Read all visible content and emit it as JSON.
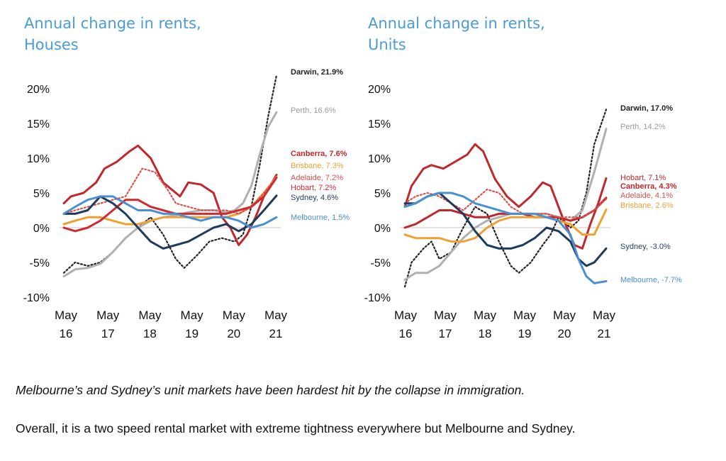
{
  "captions": {
    "line1": "Melbourne’s and Sydney’s unit markets have been hardest hit by the collapse in immigration.",
    "line2": "Overall, it is a two speed rental market with extreme tightness everywhere but Melbourne and Sydney."
  },
  "colors": {
    "title": "#4a9bd6",
    "Darwin": "#222222",
    "Perth": "#b0b0b0",
    "Canberra": "#c0282d",
    "Brisbane": "#f0a030",
    "Adelaide": "#d9534f",
    "Hobart": "#c0282d",
    "Sydney": "#1f3b5c",
    "Melbourne": "#4a90d0"
  },
  "chart_data": [
    {
      "type": "line",
      "title_lines": [
        "Annual change in rents,",
        "Houses"
      ],
      "y_ticks": [
        "20%",
        "15%",
        "10%",
        "5%",
        "0%",
        "-5%",
        "-10%"
      ],
      "x_ticks": [
        [
          "May",
          "16"
        ],
        [
          "May",
          "17"
        ],
        [
          "May",
          "18"
        ],
        [
          "May",
          "19"
        ],
        [
          "May",
          "20"
        ],
        [
          "May",
          "21"
        ]
      ],
      "ylim": [
        -10,
        22
      ],
      "xlim": [
        2016.33,
        2021.4
      ],
      "series": [
        {
          "name": "Darwin",
          "end_label": "Darwin, 21.9%",
          "style": "dotted",
          "color": "#222222",
          "bold_label": true,
          "x": [
            2016.33,
            2016.6,
            2016.9,
            2017.2,
            2017.5,
            2017.8,
            2018.1,
            2018.4,
            2018.7,
            2019.0,
            2019.2,
            2019.5,
            2019.8,
            2020.1,
            2020.4,
            2020.6,
            2020.8,
            2021.0,
            2021.2,
            2021.4
          ],
          "y": [
            -6.5,
            -5.0,
            -5.5,
            -5.0,
            -3.5,
            -1.5,
            0.0,
            1.5,
            -1.0,
            -4.5,
            -5.8,
            -4.0,
            -2.0,
            -1.5,
            -2.0,
            -1.0,
            3.0,
            9.0,
            16.0,
            21.9
          ]
        },
        {
          "name": "Perth",
          "end_label": "Perth, 16.6%",
          "style": "solid",
          "color": "#b0b0b0",
          "bold_label": false,
          "x": [
            2016.33,
            2016.6,
            2016.9,
            2017.2,
            2017.5,
            2017.8,
            2018.1,
            2018.4,
            2018.7,
            2019.0,
            2019.3,
            2019.6,
            2019.9,
            2020.2,
            2020.4,
            2020.6,
            2020.8,
            2021.0,
            2021.2,
            2021.4
          ],
          "y": [
            -7.0,
            -6.0,
            -5.8,
            -5.2,
            -3.5,
            -1.5,
            0.0,
            1.0,
            1.5,
            1.8,
            2.2,
            2.5,
            2.5,
            2.2,
            2.5,
            3.5,
            6.0,
            10.5,
            14.5,
            16.6
          ]
        },
        {
          "name": "Canberra",
          "end_label": "Canberra, 7.6%",
          "style": "solid",
          "color": "#c0282d",
          "bold_label": true,
          "x": [
            2016.33,
            2016.5,
            2016.8,
            2017.1,
            2017.3,
            2017.6,
            2017.9,
            2018.1,
            2018.4,
            2018.7,
            2018.9,
            2019.1,
            2019.3,
            2019.6,
            2019.9,
            2020.1,
            2020.3,
            2020.5,
            2020.7,
            2020.9,
            2021.1,
            2021.4
          ],
          "y": [
            3.5,
            4.5,
            5.0,
            6.5,
            8.5,
            9.5,
            11.0,
            11.8,
            10.0,
            6.5,
            5.5,
            4.5,
            6.5,
            6.2,
            5.0,
            1.5,
            0.0,
            -2.5,
            -1.0,
            1.5,
            4.5,
            7.6
          ]
        },
        {
          "name": "Brisbane",
          "end_label": "Brisbane, 7.3%",
          "style": "solid",
          "color": "#f0a030",
          "bold_label": false,
          "x": [
            2016.33,
            2016.6,
            2016.9,
            2017.2,
            2017.5,
            2017.8,
            2018.1,
            2018.4,
            2018.7,
            2019.0,
            2019.3,
            2019.6,
            2019.9,
            2020.2,
            2020.5,
            2020.8,
            2021.1,
            2021.4
          ],
          "y": [
            0.5,
            1.0,
            1.5,
            1.5,
            1.0,
            0.5,
            0.5,
            1.0,
            1.5,
            1.5,
            1.5,
            1.5,
            1.5,
            1.5,
            2.0,
            3.0,
            5.0,
            7.3
          ]
        },
        {
          "name": "Adelaide",
          "end_label": "Adelaide, 7.2%",
          "style": "dotted",
          "color": "#d9534f",
          "bold_label": false,
          "x": [
            2016.33,
            2016.6,
            2016.9,
            2017.2,
            2017.5,
            2017.8,
            2018.0,
            2018.2,
            2018.5,
            2018.8,
            2019.0,
            2019.3,
            2019.6,
            2019.9,
            2020.2,
            2020.5,
            2020.8,
            2021.1,
            2021.4
          ],
          "y": [
            2.0,
            2.5,
            3.0,
            3.5,
            4.0,
            4.5,
            6.5,
            8.5,
            8.0,
            5.5,
            3.5,
            3.0,
            2.5,
            2.5,
            2.5,
            2.0,
            3.0,
            5.0,
            7.2
          ]
        },
        {
          "name": "Hobart",
          "end_label": "Hobart, 7.2%",
          "style": "solid",
          "color": "#d02a30",
          "bold_label": false,
          "x": [
            2016.33,
            2016.6,
            2016.9,
            2017.2,
            2017.5,
            2017.8,
            2018.1,
            2018.4,
            2018.7,
            2019.0,
            2019.3,
            2019.6,
            2019.9,
            2020.2,
            2020.5,
            2020.8,
            2021.1,
            2021.4
          ],
          "y": [
            0.0,
            -0.5,
            0.0,
            1.0,
            2.5,
            4.0,
            4.0,
            3.0,
            2.5,
            2.0,
            2.0,
            2.0,
            2.0,
            2.0,
            2.5,
            3.0,
            4.5,
            7.2
          ]
        },
        {
          "name": "Sydney",
          "end_label": "Sydney, 4.6%",
          "style": "solid",
          "color": "#1f3b5c",
          "bold_label": false,
          "x": [
            2016.33,
            2016.6,
            2016.9,
            2017.2,
            2017.5,
            2017.8,
            2018.1,
            2018.4,
            2018.7,
            2019.0,
            2019.3,
            2019.6,
            2019.9,
            2020.2,
            2020.5,
            2020.8,
            2021.1,
            2021.4
          ],
          "y": [
            2.0,
            2.0,
            2.5,
            4.5,
            3.5,
            2.0,
            0.0,
            -2.0,
            -3.0,
            -2.5,
            -2.0,
            -1.0,
            0.0,
            0.5,
            -0.5,
            0.5,
            2.5,
            4.6
          ]
        },
        {
          "name": "Melbourne",
          "end_label": "Melbourne, 1.5%",
          "style": "solid",
          "color": "#4a90d0",
          "bold_label": false,
          "x": [
            2016.33,
            2016.6,
            2016.9,
            2017.2,
            2017.5,
            2017.8,
            2018.1,
            2018.4,
            2018.7,
            2019.0,
            2019.3,
            2019.6,
            2019.9,
            2020.2,
            2020.5,
            2020.8,
            2021.1,
            2021.4
          ],
          "y": [
            2.0,
            3.0,
            4.0,
            4.5,
            4.5,
            3.5,
            2.5,
            2.5,
            2.0,
            2.0,
            1.5,
            1.0,
            1.5,
            1.5,
            1.0,
            0.0,
            0.5,
            1.5
          ]
        }
      ]
    },
    {
      "type": "line",
      "title_lines": [
        "Annual change in rents,",
        "Units"
      ],
      "y_ticks": [
        "20%",
        "15%",
        "10%",
        "5%",
        "0%",
        "-5%",
        "-10%"
      ],
      "x_ticks": [
        [
          "May",
          "16"
        ],
        [
          "May",
          "17"
        ],
        [
          "May",
          "18"
        ],
        [
          "May",
          "19"
        ],
        [
          "May",
          "20"
        ],
        [
          "May",
          "21"
        ]
      ],
      "ylim": [
        -10,
        22
      ],
      "xlim": [
        2016.33,
        2021.4
      ],
      "series": [
        {
          "name": "Darwin",
          "end_label": "Darwin, 17.0%",
          "style": "dotted",
          "color": "#222222",
          "bold_label": true,
          "x": [
            2016.33,
            2016.5,
            2016.8,
            2017.0,
            2017.2,
            2017.5,
            2017.8,
            2018.1,
            2018.4,
            2018.7,
            2019.0,
            2019.2,
            2019.5,
            2019.8,
            2020.0,
            2020.2,
            2020.5,
            2020.7,
            2020.9,
            2021.1,
            2021.4
          ],
          "y": [
            -8.5,
            -5.0,
            -3.0,
            -2.0,
            -4.5,
            -3.5,
            0.0,
            3.0,
            2.0,
            -2.0,
            -5.5,
            -6.5,
            -5.0,
            -2.5,
            -1.0,
            1.5,
            0.0,
            1.0,
            5.0,
            12.0,
            17.0
          ]
        },
        {
          "name": "Perth",
          "end_label": "Perth, 14.2%",
          "style": "solid",
          "color": "#b0b0b0",
          "bold_label": false,
          "x": [
            2016.33,
            2016.6,
            2016.9,
            2017.2,
            2017.5,
            2017.8,
            2018.1,
            2018.4,
            2018.7,
            2019.0,
            2019.3,
            2019.6,
            2019.9,
            2020.2,
            2020.5,
            2020.8,
            2021.1,
            2021.4
          ],
          "y": [
            -7.5,
            -6.5,
            -6.5,
            -5.5,
            -3.5,
            -1.5,
            0.0,
            1.0,
            1.5,
            2.0,
            2.0,
            2.0,
            2.0,
            1.5,
            1.0,
            2.5,
            8.0,
            14.2
          ]
        },
        {
          "name": "Hobart",
          "end_label": "Hobart, 7.1%",
          "style": "solid",
          "color": "#c0282d",
          "bold_label": false,
          "x": [
            2016.33,
            2016.5,
            2016.8,
            2017.0,
            2017.3,
            2017.6,
            2017.9,
            2018.1,
            2018.3,
            2018.6,
            2018.9,
            2019.2,
            2019.5,
            2019.8,
            2020.0,
            2020.3,
            2020.6,
            2020.8,
            2021.0,
            2021.2,
            2021.4
          ],
          "y": [
            3.0,
            6.0,
            8.5,
            9.0,
            8.5,
            9.5,
            10.5,
            12.0,
            11.0,
            7.0,
            4.5,
            3.0,
            4.5,
            6.5,
            6.0,
            1.5,
            -2.5,
            -3.0,
            0.5,
            3.5,
            7.1
          ]
        },
        {
          "name": "Canberra",
          "end_label": "Canberra, 4.3%",
          "style": "solid",
          "color": "#c0282d",
          "bold_label": true,
          "x": [
            2016.33,
            2016.6,
            2016.9,
            2017.2,
            2017.5,
            2017.8,
            2018.1,
            2018.4,
            2018.7,
            2019.0,
            2019.3,
            2019.6,
            2019.9,
            2020.2,
            2020.5,
            2020.8,
            2021.1,
            2021.4
          ],
          "y": [
            0.0,
            0.5,
            1.5,
            2.5,
            2.5,
            2.0,
            1.5,
            1.5,
            2.0,
            2.0,
            2.0,
            1.5,
            1.5,
            1.5,
            1.0,
            1.5,
            2.5,
            4.3
          ]
        },
        {
          "name": "Adelaide",
          "end_label": "Adelaide, 4.1%",
          "style": "dotted",
          "color": "#d9534f",
          "bold_label": false,
          "x": [
            2016.33,
            2016.6,
            2016.9,
            2017.2,
            2017.5,
            2017.8,
            2018.1,
            2018.4,
            2018.7,
            2019.0,
            2019.3,
            2019.6,
            2019.9,
            2020.2,
            2020.5,
            2020.8,
            2021.1,
            2021.4
          ],
          "y": [
            3.5,
            4.5,
            5.0,
            4.5,
            3.5,
            2.5,
            4.0,
            5.5,
            5.0,
            3.0,
            2.0,
            2.0,
            2.0,
            1.5,
            1.5,
            1.5,
            2.5,
            4.1
          ]
        },
        {
          "name": "Brisbane",
          "end_label": "Brisbane, 2.6%",
          "style": "solid",
          "color": "#f0a030",
          "bold_label": false,
          "x": [
            2016.33,
            2016.6,
            2016.9,
            2017.2,
            2017.5,
            2017.8,
            2018.1,
            2018.4,
            2018.7,
            2019.0,
            2019.3,
            2019.6,
            2019.9,
            2020.2,
            2020.5,
            2020.8,
            2021.1,
            2021.4
          ],
          "y": [
            -1.0,
            -1.5,
            -1.5,
            -1.5,
            -2.0,
            -2.0,
            -1.5,
            0.0,
            1.0,
            1.5,
            1.5,
            1.5,
            1.5,
            1.0,
            0.5,
            -1.0,
            -1.0,
            2.6
          ]
        },
        {
          "name": "Sydney",
          "end_label": "Sydney, -3.0%",
          "style": "solid",
          "color": "#1f3b5c",
          "bold_label": false,
          "x": [
            2016.33,
            2016.6,
            2016.9,
            2017.2,
            2017.5,
            2017.8,
            2018.1,
            2018.4,
            2018.7,
            2019.0,
            2019.3,
            2019.6,
            2019.9,
            2020.2,
            2020.5,
            2020.7,
            2020.9,
            2021.1,
            2021.4
          ],
          "y": [
            3.5,
            3.5,
            4.5,
            5.0,
            3.5,
            2.0,
            -0.5,
            -2.5,
            -3.0,
            -3.0,
            -2.5,
            -1.5,
            0.0,
            -0.5,
            -2.0,
            -4.5,
            -5.5,
            -5.0,
            -3.0
          ]
        },
        {
          "name": "Melbourne",
          "end_label": "Melbourne, -7.7%",
          "style": "solid",
          "color": "#4a90d0",
          "bold_label": false,
          "x": [
            2016.33,
            2016.6,
            2016.9,
            2017.2,
            2017.5,
            2017.8,
            2018.1,
            2018.4,
            2018.7,
            2019.0,
            2019.3,
            2019.6,
            2019.9,
            2020.2,
            2020.5,
            2020.7,
            2020.9,
            2021.1,
            2021.4
          ],
          "y": [
            3.0,
            3.5,
            4.5,
            5.0,
            5.0,
            4.5,
            3.5,
            3.0,
            2.5,
            2.0,
            2.0,
            2.0,
            1.5,
            1.0,
            -1.0,
            -4.5,
            -7.0,
            -8.0,
            -7.7
          ]
        }
      ]
    }
  ]
}
